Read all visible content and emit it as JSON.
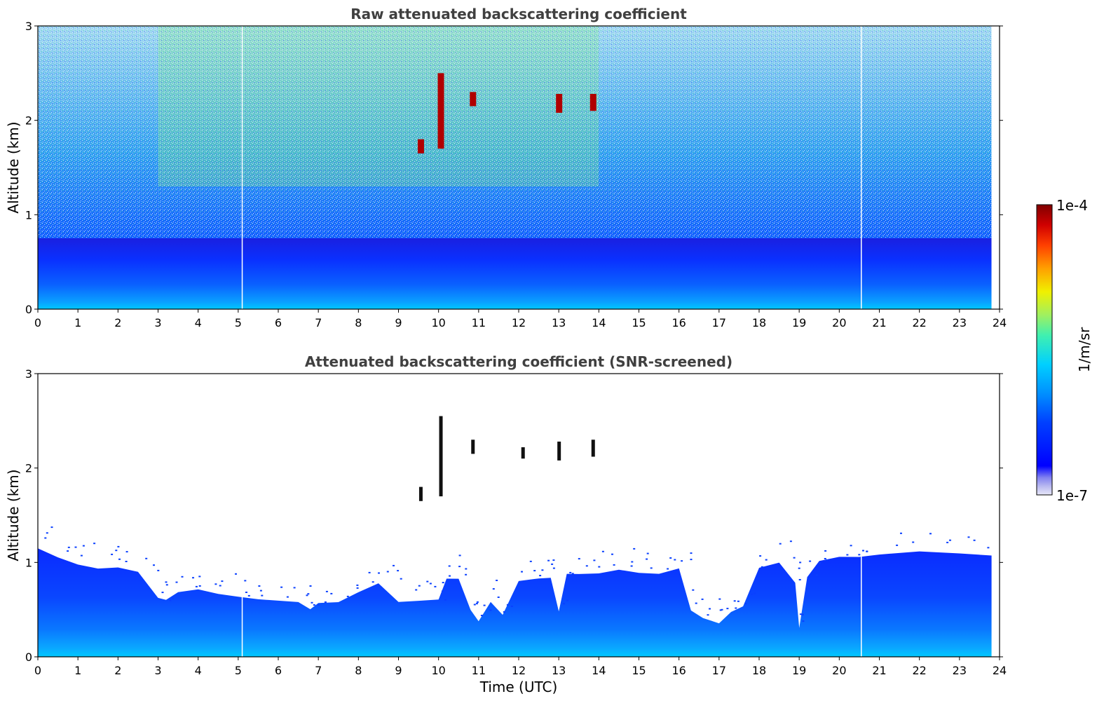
{
  "chart_data": [
    {
      "type": "heatmap",
      "title": "Raw attenuated backscattering coefficient",
      "xlabel": "",
      "ylabel": "Altitude (km)",
      "xlim": [
        0,
        24
      ],
      "ylim": [
        0,
        3
      ],
      "x_ticks": [
        "0",
        "1",
        "2",
        "3",
        "4",
        "5",
        "6",
        "7",
        "8",
        "9",
        "10",
        "11",
        "12",
        "13",
        "14",
        "15",
        "16",
        "17",
        "18",
        "19",
        "20",
        "21",
        "22",
        "23",
        "24"
      ],
      "y_ticks": [
        "0",
        "1",
        "2",
        "3"
      ],
      "data_end_time": 23.8,
      "time_gaps": [
        5.1,
        20.55
      ],
      "features": {
        "surface_layer_top_km": 0.75,
        "noise_increases_with_altitude": true,
        "elevated_green_yellow_region_hours": [
          3,
          14
        ],
        "high_backscatter_patches": [
          {
            "time": 10.05,
            "alt_range": [
              1.7,
              2.5
            ]
          },
          {
            "time": 9.55,
            "alt_range": [
              1.65,
              1.8
            ]
          },
          {
            "time": 10.85,
            "alt_range": [
              2.15,
              2.3
            ]
          },
          {
            "time": 13.0,
            "alt_range": [
              2.08,
              2.28
            ]
          },
          {
            "time": 13.85,
            "alt_range": [
              2.1,
              2.28
            ]
          }
        ]
      }
    },
    {
      "type": "heatmap",
      "title": "Attenuated backscattering coefficient (SNR-screened)",
      "xlabel": "Time (UTC)",
      "ylabel": "Altitude (km)",
      "xlim": [
        0,
        24
      ],
      "ylim": [
        0,
        3
      ],
      "x_ticks": [
        "0",
        "1",
        "2",
        "3",
        "4",
        "5",
        "6",
        "7",
        "8",
        "9",
        "10",
        "11",
        "12",
        "13",
        "14",
        "15",
        "16",
        "17",
        "18",
        "19",
        "20",
        "21",
        "22",
        "23",
        "24"
      ],
      "y_ticks": [
        "0",
        "1",
        "2",
        "3"
      ],
      "data_end_time": 23.8,
      "time_gaps": [
        5.1,
        20.55
      ],
      "boundary_layer_top_km": {
        "t": [
          0,
          0.5,
          1,
          1.5,
          2,
          2.5,
          3,
          3.2,
          3.5,
          4,
          4.5,
          5,
          5.5,
          6,
          6.5,
          6.8,
          7,
          7.5,
          8,
          8.5,
          9,
          9.5,
          10,
          10.2,
          10.5,
          10.8,
          11,
          11.3,
          11.6,
          12,
          12.5,
          12.8,
          13,
          13.2,
          13.5,
          14,
          14.5,
          15,
          15.5,
          16,
          16.3,
          16.6,
          17,
          17.3,
          17.6,
          18,
          18.5,
          18.9,
          19,
          19.2,
          19.5,
          20,
          20.5,
          21,
          22,
          23,
          23.8
        ],
        "top": [
          1.15,
          1.05,
          1.0,
          0.95,
          0.95,
          0.9,
          0.65,
          0.58,
          0.68,
          0.72,
          0.68,
          0.62,
          0.6,
          0.62,
          0.58,
          0.52,
          0.56,
          0.6,
          0.68,
          0.78,
          0.6,
          0.62,
          0.58,
          0.8,
          0.85,
          0.5,
          0.35,
          0.6,
          0.45,
          0.8,
          0.82,
          0.85,
          0.5,
          0.85,
          0.88,
          0.9,
          0.92,
          0.9,
          0.9,
          0.92,
          0.5,
          0.42,
          0.38,
          0.45,
          0.55,
          0.92,
          1.0,
          0.8,
          0.3,
          0.85,
          1.0,
          1.05,
          1.08,
          1.1,
          1.12,
          1.12,
          1.1
        ]
      },
      "cloud_patches": [
        {
          "time": 10.05,
          "alt_range": [
            1.7,
            2.55
          ]
        },
        {
          "time": 9.55,
          "alt_range": [
            1.65,
            1.8
          ]
        },
        {
          "time": 10.85,
          "alt_range": [
            2.15,
            2.3
          ]
        },
        {
          "time": 12.1,
          "alt_range": [
            2.1,
            2.22
          ]
        },
        {
          "time": 13.0,
          "alt_range": [
            2.08,
            2.28
          ]
        },
        {
          "time": 13.85,
          "alt_range": [
            2.12,
            2.3
          ]
        }
      ]
    }
  ],
  "colorbar": {
    "label": "1/m/sr",
    "max_label": "1e-4",
    "min_label": "1e-7",
    "scale": "log",
    "colormap": "jet",
    "colors": [
      "#e8e8f8",
      "#b8b8f0",
      "#8080f0",
      "#0000ff",
      "#0040ff",
      "#0080ff",
      "#00c0ff",
      "#00e0e0",
      "#40f0a0",
      "#a0f060",
      "#f0f000",
      "#ffc000",
      "#ff8000",
      "#ff3000",
      "#e00000",
      "#800000"
    ]
  }
}
